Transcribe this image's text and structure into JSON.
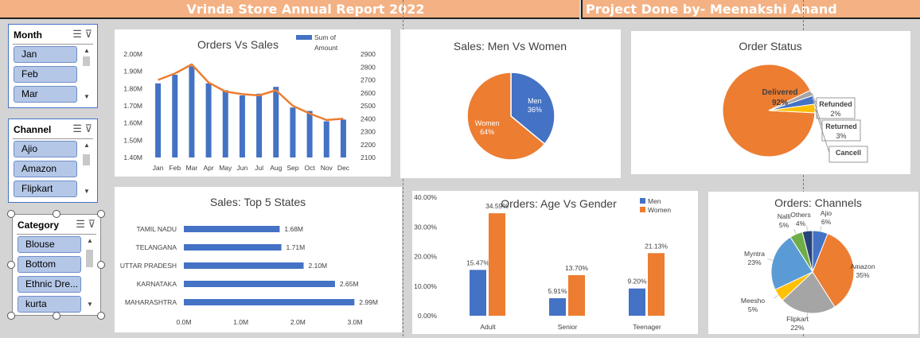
{
  "banner": {
    "title": "Vrinda Store Annual Report 2022",
    "credit": "Project Done by- Meenakshi Anand"
  },
  "slicers": {
    "month": {
      "title": "Month",
      "items": [
        "Jan",
        "Feb",
        "Mar"
      ]
    },
    "channel": {
      "title": "Channel",
      "items": [
        "Ajio",
        "Amazon",
        "Flipkart"
      ]
    },
    "category": {
      "title": "Category",
      "items": [
        "Blouse",
        "Bottom",
        "Ethnic Dre...",
        "kurta"
      ]
    }
  },
  "icons": {
    "multiselect": "multi-select-icon",
    "clearfilter": "clear-filter-icon",
    "scroll_up": "scroll-up-icon",
    "scroll_down": "scroll-down-icon"
  },
  "colors": {
    "blue": "#4472c4",
    "orange": "#ed7d31",
    "gray": "#a5a5a5",
    "yellow": "#ffc000",
    "lightblue": "#5b9bd5",
    "green": "#70ad47",
    "navy": "#264478"
  },
  "chart_data": [
    {
      "id": "orders-vs-sales",
      "type": "bar+line",
      "title": "Orders Vs Sales",
      "categories": [
        "Jan",
        "Feb",
        "Mar",
        "Apr",
        "May",
        "Jun",
        "Jul",
        "Aug",
        "Sep",
        "Oct",
        "Nov",
        "Dec"
      ],
      "series": [
        {
          "name": "Sum of Amount",
          "kind": "bar",
          "axis": "left",
          "values": [
            1.83,
            1.88,
            1.93,
            1.83,
            1.79,
            1.76,
            1.77,
            1.81,
            1.69,
            1.67,
            1.61,
            1.62
          ]
        },
        {
          "kind": "line",
          "axis": "right",
          "values": [
            2700,
            2750,
            2820,
            2680,
            2610,
            2590,
            2580,
            2620,
            2500,
            2440,
            2390,
            2400
          ]
        }
      ],
      "ylim_left": [
        1.4,
        2.0
      ],
      "yticks_left": [
        "2.00M",
        "1.90M",
        "1.80M",
        "1.70M",
        "1.60M",
        "1.50M",
        "1.40M"
      ],
      "ylim_right": [
        2100,
        2900
      ],
      "yticks_right": [
        "2900",
        "2800",
        "2700",
        "2600",
        "2500",
        "2400",
        "2300",
        "2200",
        "2100"
      ],
      "legend_label": "Sum of Amount"
    },
    {
      "id": "sales-men-women",
      "type": "pie",
      "title": "Sales: Men Vs Women",
      "labels": [
        "Men",
        "Women"
      ],
      "values": [
        36,
        64
      ],
      "display": [
        "36%",
        "64%"
      ]
    },
    {
      "id": "order-status",
      "type": "pie",
      "title": "Order Status",
      "labels": [
        "Delivered",
        "Refunded",
        "Returned",
        "Cancell"
      ],
      "values": [
        92,
        2,
        3,
        3
      ],
      "display": [
        "92%",
        "2%",
        "3%",
        ""
      ]
    },
    {
      "id": "top-5-states",
      "type": "bar",
      "orientation": "horizontal",
      "title": "Sales: Top 5 States",
      "categories": [
        "TAMIL NADU",
        "TELANGANA",
        "UTTAR PRADESH",
        "KARNATAKA",
        "MAHARASHTRA"
      ],
      "values": [
        1.68,
        1.71,
        2.1,
        2.65,
        2.99
      ],
      "data_labels": [
        "1.68M",
        "1.71M",
        "2.10M",
        "2.65M",
        "2.99M"
      ],
      "xlim": [
        0,
        3.0
      ],
      "xticks": [
        "0.0M",
        "1.0M",
        "2.0M",
        "3.0M"
      ]
    },
    {
      "id": "age-vs-gender",
      "type": "bar",
      "title": "Orders: Age Vs Gender",
      "categories": [
        "Adult",
        "Senior",
        "Teenager"
      ],
      "series": [
        {
          "name": "Men",
          "values": [
            15.47,
            5.91,
            9.2
          ],
          "labels": [
            "15.47%",
            "5.91%",
            "9.20%"
          ]
        },
        {
          "name": "Women",
          "values": [
            34.59,
            13.7,
            21.13
          ],
          "labels": [
            "34.59%",
            "13.70%",
            "21.13%"
          ]
        }
      ],
      "ylim": [
        0,
        40
      ],
      "yticks": [
        "40.00%",
        "30.00%",
        "20.00%",
        "10.00%",
        "0.00%"
      ]
    },
    {
      "id": "orders-channels",
      "type": "pie",
      "title": "Orders: Channels",
      "labels": [
        "Ajio",
        "Amazon",
        "Flipkart",
        "Meesho",
        "Myntra",
        "Nalli",
        "Others"
      ],
      "values": [
        6,
        35,
        22,
        5,
        23,
        5,
        4
      ],
      "display": [
        "6%",
        "35%",
        "22%",
        "5%",
        "23%",
        "5%",
        "4%"
      ]
    }
  ]
}
